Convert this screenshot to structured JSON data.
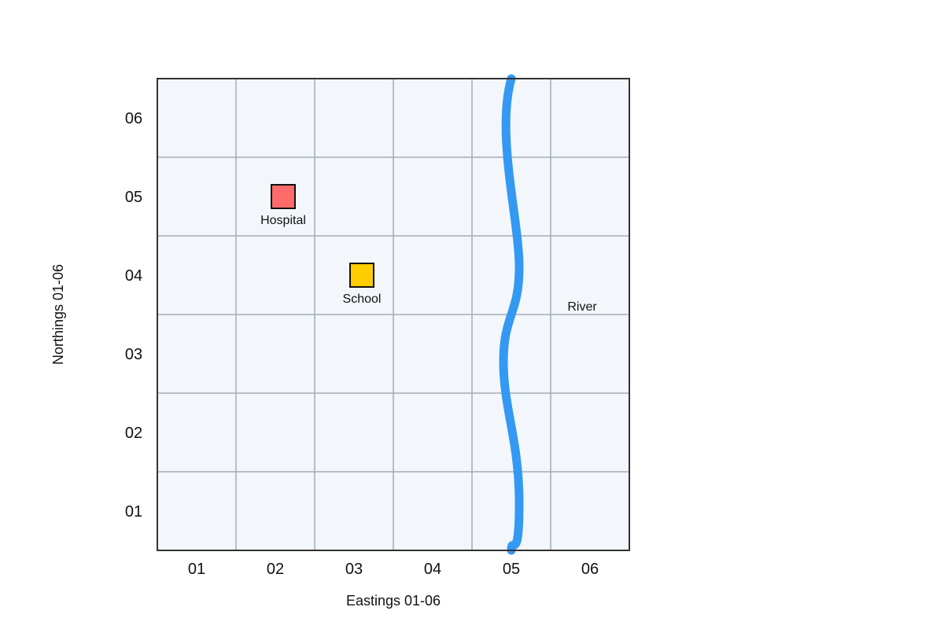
{
  "map": {
    "grid_fill": "#f3f7fc",
    "grid_line_color": "#a3abb5",
    "frame_color": "#333333",
    "eastings": [
      "01",
      "02",
      "03",
      "04",
      "05",
      "06"
    ],
    "northings": [
      "01",
      "02",
      "03",
      "04",
      "05",
      "06"
    ],
    "x_axis_title": "Eastings 01-06",
    "y_axis_title": "Northings 01-06",
    "features": [
      {
        "label": "Hospital",
        "easting": 2.1,
        "northing": 5.0,
        "color": "#ff6b6b",
        "marker": "square"
      },
      {
        "label": "School",
        "easting": 3.1,
        "northing": 4.0,
        "color": "#ffcc00",
        "marker": "square"
      }
    ],
    "river": {
      "label": "River",
      "color": "#3399f3",
      "easting": 5.0,
      "label_easting": 5.9,
      "label_northing": 3.55
    }
  }
}
